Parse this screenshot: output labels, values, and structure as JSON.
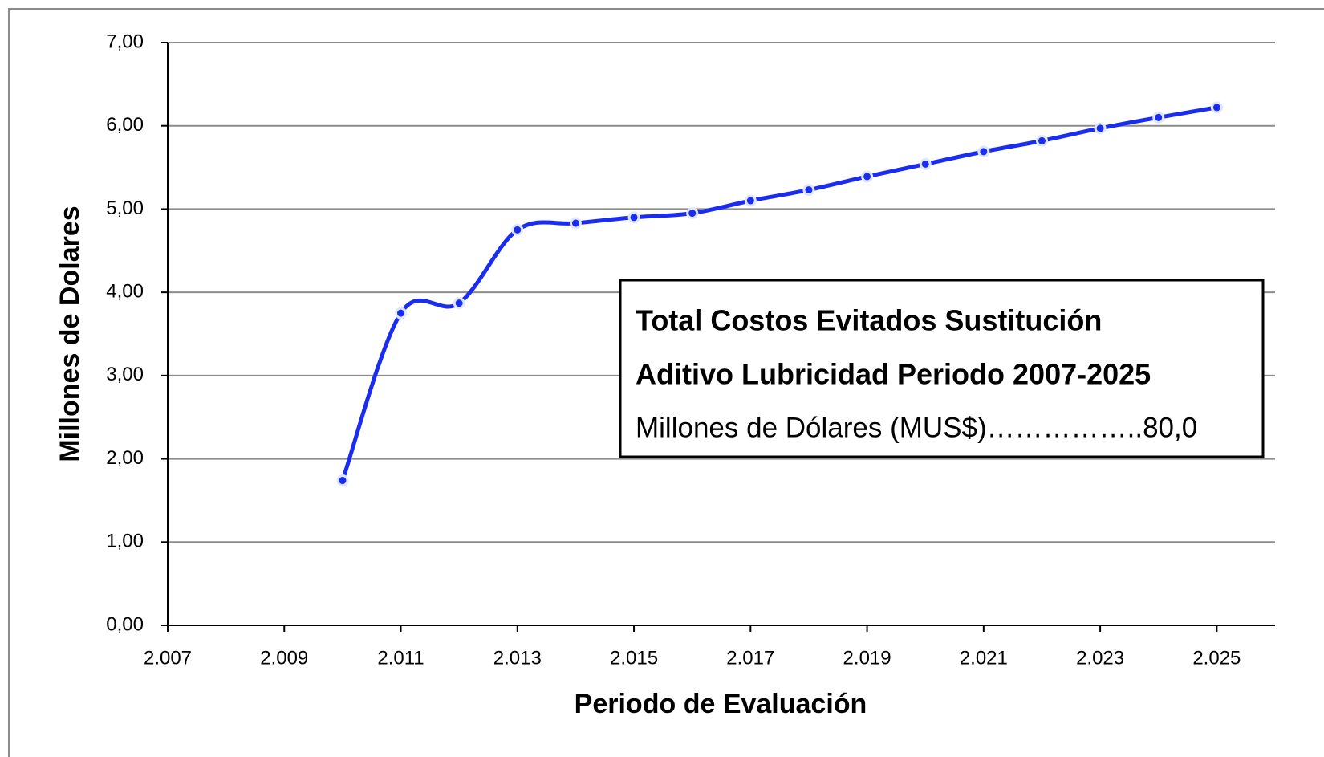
{
  "chart_data": {
    "type": "line",
    "x_label": "Periodo de Evaluación",
    "y_label": "Millones de Dolares",
    "x": [
      2010,
      2011,
      2012,
      2013,
      2014,
      2015,
      2016,
      2017,
      2018,
      2019,
      2020,
      2021,
      2022,
      2023,
      2024,
      2025
    ],
    "series": [
      {
        "color": "#1a2cf0",
        "values": [
          1.74,
          3.75,
          3.87,
          4.75,
          4.83,
          4.9,
          4.95,
          5.1,
          5.23,
          5.39,
          5.54,
          5.69,
          5.82,
          5.97,
          6.1,
          6.22
        ]
      }
    ],
    "xlim": [
      2007,
      2026
    ],
    "xticks": [
      {
        "value": 2007,
        "label": "2.007"
      },
      {
        "value": 2009,
        "label": "2.009"
      },
      {
        "value": 2011,
        "label": "2.011"
      },
      {
        "value": 2013,
        "label": "2.013"
      },
      {
        "value": 2015,
        "label": "2.015"
      },
      {
        "value": 2017,
        "label": "2.017"
      },
      {
        "value": 2019,
        "label": "2.019"
      },
      {
        "value": 2021,
        "label": "2.021"
      },
      {
        "value": 2023,
        "label": "2.023"
      },
      {
        "value": 2025,
        "label": "2.025"
      }
    ],
    "ylim": [
      0,
      7
    ],
    "yticks": [
      {
        "value": 0,
        "label": "0,00"
      },
      {
        "value": 1,
        "label": "1,00"
      },
      {
        "value": 2,
        "label": "2,00"
      },
      {
        "value": 3,
        "label": "3,00"
      },
      {
        "value": 4,
        "label": "4,00"
      },
      {
        "value": 5,
        "label": "5,00"
      },
      {
        "value": 6,
        "label": "6,00"
      },
      {
        "value": 7,
        "label": "7,00"
      }
    ],
    "grid": true,
    "smooth": true,
    "annotation": [
      "Total Costos Evitados Sustitución",
      "Aditivo Lubricidad Periodo 2007-2025",
      "Millones de Dólares (MUS$)……………..80,0"
    ]
  }
}
